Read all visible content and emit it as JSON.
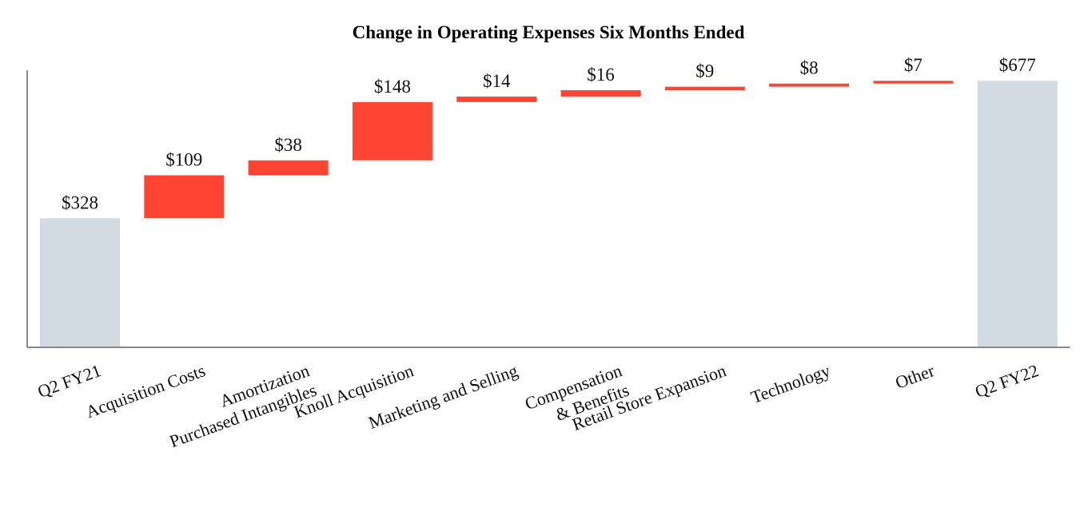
{
  "chart_data": {
    "type": "bar",
    "subtype": "waterfall",
    "title": "Change in Operating Expenses Six Months Ended",
    "xlabel": "",
    "ylabel": "",
    "ylim": [
      0,
      720
    ],
    "grid": false,
    "categories": [
      [
        "Q2 FY21"
      ],
      [
        "Acquisition Costs"
      ],
      [
        "Amortization",
        "Purchased Intangibles"
      ],
      [
        "Knoll Acquisition"
      ],
      [
        "Marketing and Selling"
      ],
      [
        "Compensation",
        "& Benefits"
      ],
      [
        "Retail Store Expansion"
      ],
      [
        "Technology"
      ],
      [
        "Other"
      ],
      [
        "Q2 FY22"
      ]
    ],
    "values": [
      328,
      109,
      38,
      148,
      14,
      16,
      9,
      8,
      7,
      677
    ],
    "kinds": [
      "total",
      "increase",
      "increase",
      "increase",
      "increase",
      "increase",
      "increase",
      "increase",
      "increase",
      "total"
    ],
    "data_labels": [
      "$328",
      "$109",
      "$38",
      "$148",
      "$14",
      "$16",
      "$9",
      "$8",
      "$7",
      "$677"
    ],
    "colors": {
      "total": "#d3dbe2",
      "increase": "#ff4433",
      "axis": "#888888"
    }
  }
}
